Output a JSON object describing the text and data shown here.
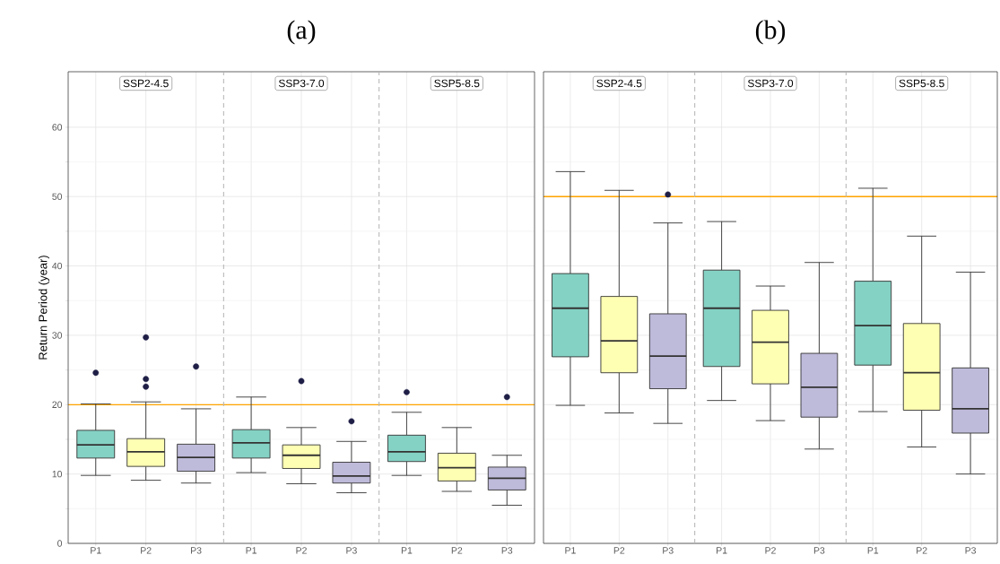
{
  "chart_data": [
    {
      "type": "box",
      "title": "SSP2-4.5",
      "categories": [
        "P1",
        "P2",
        "P3"
      ],
      "colors": [
        "#84d2c4",
        "#ffffb3",
        "#bebada"
      ],
      "ylabel": "Return Period (year)",
      "ylim": [
        0,
        68
      ],
      "yticks": [
        0,
        10,
        20,
        30,
        40,
        50,
        60
      ],
      "grid": true,
      "boxes": [
        {
          "low": 9.8,
          "q1": 12.3,
          "median": 14.2,
          "q3": 16.3,
          "high": 20.1,
          "outliers": [
            24.6
          ]
        },
        {
          "low": 9.1,
          "q1": 11.1,
          "median": 13.2,
          "q3": 15.1,
          "high": 20.4,
          "outliers": [
            29.7,
            23.7,
            22.6
          ]
        },
        {
          "low": 8.7,
          "q1": 10.4,
          "median": 12.4,
          "q3": 14.3,
          "high": 19.4,
          "outliers": [
            25.5
          ]
        }
      ],
      "ref_lines": [
        {
          "axis": "y",
          "value": 20,
          "color": "#ffa500"
        }
      ],
      "annotations": [
        "(a)"
      ]
    },
    {
      "type": "box",
      "title": "SSP3-7.0",
      "categories": [
        "P1",
        "P2",
        "P3"
      ],
      "colors": [
        "#84d2c4",
        "#ffffb3",
        "#bebada"
      ],
      "ylim": [
        0,
        68
      ],
      "yticks": [
        0,
        10,
        20,
        30,
        40,
        50,
        60
      ],
      "grid": true,
      "tick_labels": "x",
      "boxes": [
        {
          "low": 10.2,
          "q1": 12.3,
          "median": 14.5,
          "q3": 16.4,
          "high": 21.1
        },
        {
          "low": 8.6,
          "q1": 10.8,
          "median": 12.7,
          "q3": 14.2,
          "high": 16.7,
          "outliers": [
            23.4
          ]
        },
        {
          "low": 7.3,
          "q1": 8.7,
          "median": 9.7,
          "q3": 11.7,
          "high": 14.7,
          "outliers": [
            17.6
          ]
        }
      ],
      "ref_lines": [
        {
          "axis": "y",
          "value": 20,
          "color": "#ffa500"
        }
      ]
    },
    {
      "type": "box",
      "title": "SSP5-8.5",
      "categories": [
        "P1",
        "P2",
        "P3"
      ],
      "colors": [
        "#84d2c4",
        "#ffffb3",
        "#bebada"
      ],
      "ylim": [
        0,
        68
      ],
      "yticks": [
        0,
        10,
        20,
        30,
        40,
        50,
        60
      ],
      "grid": true,
      "tick_labels": "x",
      "boxes": [
        {
          "low": 9.8,
          "q1": 11.8,
          "median": 13.2,
          "q3": 15.6,
          "high": 18.9,
          "outliers": [
            21.8
          ]
        },
        {
          "low": 7.5,
          "q1": 9.0,
          "median": 10.9,
          "q3": 13.0,
          "high": 16.7
        },
        {
          "low": 5.5,
          "q1": 7.7,
          "median": 9.4,
          "q3": 11.0,
          "high": 12.7,
          "outliers": [
            21.1
          ]
        }
      ],
      "ref_lines": [
        {
          "axis": "y",
          "value": 20,
          "color": "#ffa500"
        }
      ]
    },
    {
      "type": "box",
      "title": "SSP2-4.5",
      "categories": [
        "P1",
        "P2",
        "P3"
      ],
      "colors": [
        "#84d2c4",
        "#ffffb3",
        "#bebada"
      ],
      "ylim": [
        0,
        68
      ],
      "yticks": [
        0,
        10,
        20,
        30,
        40,
        50,
        60
      ],
      "grid": true,
      "tick_labels": "x",
      "boxes": [
        {
          "low": 19.9,
          "q1": 26.9,
          "median": 33.9,
          "q3": 38.9,
          "high": 53.6
        },
        {
          "low": 18.8,
          "q1": 24.6,
          "median": 29.2,
          "q3": 35.6,
          "high": 50.9
        },
        {
          "low": 17.3,
          "q1": 22.3,
          "median": 27.0,
          "q3": 33.1,
          "high": 46.2,
          "outliers": [
            50.3
          ]
        }
      ],
      "ref_lines": [
        {
          "axis": "y",
          "value": 50,
          "color": "#ffa500"
        }
      ],
      "annotations": [
        "(b)"
      ]
    },
    {
      "type": "box",
      "title": "SSP3-7.0",
      "categories": [
        "P1",
        "P2",
        "P3"
      ],
      "colors": [
        "#84d2c4",
        "#ffffb3",
        "#bebada"
      ],
      "ylim": [
        0,
        68
      ],
      "yticks": [
        0,
        10,
        20,
        30,
        40,
        50,
        60
      ],
      "grid": true,
      "tick_labels": "x",
      "boxes": [
        {
          "low": 20.6,
          "q1": 25.5,
          "median": 33.9,
          "q3": 39.4,
          "high": 46.4
        },
        {
          "low": 17.7,
          "q1": 23.0,
          "median": 29.0,
          "q3": 33.6,
          "high": 37.1
        },
        {
          "low": 13.6,
          "q1": 18.2,
          "median": 22.5,
          "q3": 27.4,
          "high": 40.5
        }
      ],
      "ref_lines": [
        {
          "axis": "y",
          "value": 50,
          "color": "#ffa500"
        }
      ]
    },
    {
      "type": "box",
      "title": "SSP5-8.5",
      "categories": [
        "P1",
        "P2",
        "P3"
      ],
      "colors": [
        "#84d2c4",
        "#ffffb3",
        "#bebada"
      ],
      "ylim": [
        0,
        68
      ],
      "yticks": [
        0,
        10,
        20,
        30,
        40,
        50,
        60
      ],
      "grid": true,
      "tick_labels": "x",
      "boxes": [
        {
          "low": 19.0,
          "q1": 25.7,
          "median": 31.4,
          "q3": 37.8,
          "high": 51.2
        },
        {
          "low": 13.9,
          "q1": 19.2,
          "median": 24.6,
          "q3": 31.7,
          "high": 44.3
        },
        {
          "low": 10.0,
          "q1": 15.9,
          "median": 19.4,
          "q3": 25.3,
          "high": 39.1
        }
      ],
      "ref_lines": [
        {
          "axis": "y",
          "value": 50,
          "color": "#ffa500"
        }
      ]
    }
  ]
}
